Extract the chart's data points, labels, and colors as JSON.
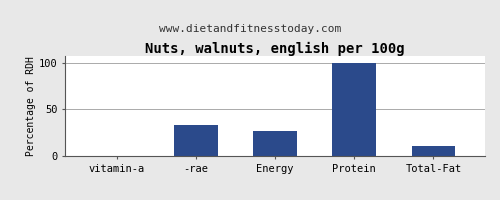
{
  "title": "Nuts, walnuts, english per 100g",
  "subtitle": "www.dietandfitnesstoday.com",
  "categories": [
    "vitamin-a",
    "-rae",
    "Energy",
    "Protein",
    "Total-Fat"
  ],
  "values": [
    0,
    33,
    27,
    100,
    11
  ],
  "bar_color": "#2b4a8b",
  "ylabel": "Percentage of RDH",
  "ylim": [
    0,
    107
  ],
  "yticks": [
    0,
    50,
    100
  ],
  "background_color": "#e8e8e8",
  "plot_bg_color": "#ffffff",
  "title_fontsize": 10,
  "subtitle_fontsize": 8,
  "ylabel_fontsize": 7,
  "tick_fontsize": 7.5,
  "bar_width": 0.55
}
